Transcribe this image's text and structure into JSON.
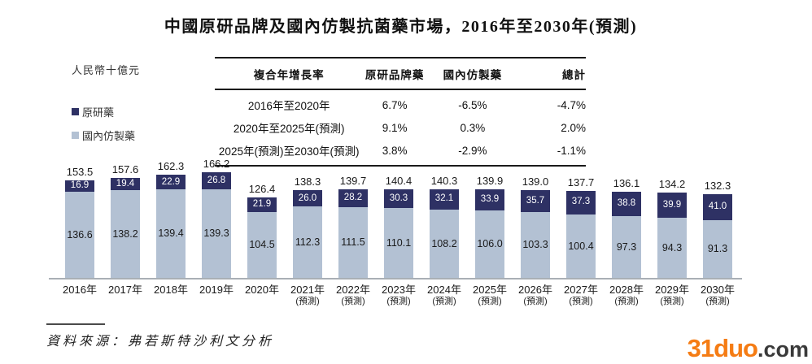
{
  "title": "中國原研品牌及國內仿製抗菌藥市場，2016年至2030年(預測)",
  "unit_label": "人民幣十億元",
  "legend": {
    "originator_label": "原研藥",
    "generic_label": "國內仿製藥"
  },
  "colors": {
    "originator": "#2e3164",
    "generic": "#b3c1d3",
    "baseline": "#a9afb5",
    "watermark_orange": "#f57c14",
    "watermark_dark": "#3a3a3a"
  },
  "cagr_table": {
    "headers": [
      "複合年增長率",
      "原研品牌藥",
      "國內仿製藥",
      "總計"
    ],
    "rows": [
      {
        "period": "2016年至2020年",
        "originator": "6.7%",
        "generic": "-6.5%",
        "total": "-4.7%"
      },
      {
        "period": "2020年至2025年(預測)",
        "originator": "9.1%",
        "generic": "0.3%",
        "total": "2.0%"
      },
      {
        "period": "2025年(預測)至2030年(預測)",
        "originator": "3.8%",
        "generic": "-2.9%",
        "total": "-1.1%"
      }
    ]
  },
  "chart_data": {
    "type": "bar",
    "stacked": true,
    "title": "中國原研品牌及國內仿製抗菌藥市場，2016年至2030年(預測)",
    "ylabel": "人民幣十億元",
    "xlabel": "",
    "grid": false,
    "legend_position": "left",
    "categories": [
      "2016年",
      "2017年",
      "2018年",
      "2019年",
      "2020年",
      "2021年",
      "2022年",
      "2023年",
      "2024年",
      "2025年",
      "2026年",
      "2027年",
      "2028年",
      "2029年",
      "2030年"
    ],
    "forecast_note": "(預測)",
    "forecast_from_index": 5,
    "series": [
      {
        "name": "原研藥",
        "color": "#2e3164",
        "values": [
          16.9,
          19.4,
          22.9,
          26.8,
          21.9,
          26.0,
          28.2,
          30.3,
          32.1,
          33.9,
          35.7,
          37.3,
          38.8,
          39.9,
          41.0
        ]
      },
      {
        "name": "國內仿製藥",
        "color": "#b3c1d3",
        "values": [
          136.6,
          138.2,
          139.4,
          139.3,
          104.5,
          112.3,
          111.5,
          110.1,
          108.2,
          106.0,
          103.3,
          100.4,
          97.3,
          94.3,
          91.3
        ]
      }
    ],
    "totals": [
      153.5,
      157.6,
      162.3,
      166.2,
      126.4,
      138.3,
      139.7,
      140.4,
      140.3,
      139.9,
      139.0,
      137.7,
      136.1,
      134.2,
      132.3
    ],
    "ylim": [
      0,
      180
    ]
  },
  "source": "資料來源：弗若斯特沙利文分析",
  "watermark": {
    "brand": "31duo",
    "suffix": ".com"
  }
}
